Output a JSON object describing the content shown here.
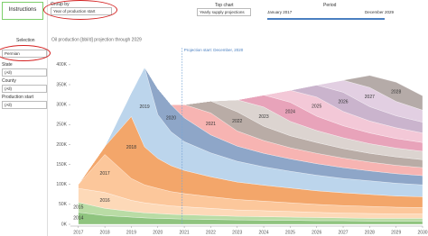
{
  "instructions": "Instructions",
  "group_by": {
    "label": "Group by",
    "value": "Year of production start"
  },
  "top_chart": {
    "label": "Top chart",
    "value": "Yearly supply projections"
  },
  "period": {
    "label": "Period",
    "start": "January 2017",
    "end": "December 2029"
  },
  "filters": [
    {
      "label": "Selection",
      "value": "Permian"
    },
    {
      "label": "State",
      "value": "(All)"
    },
    {
      "label": "County",
      "value": "(All)"
    },
    {
      "label": "Production start",
      "value": "(All)"
    }
  ],
  "chart_data": {
    "type": "stacked-area",
    "title": "Oil production [bbl/d] projection through 2029",
    "annotation": {
      "text": "Projection start: December, 2020",
      "x": 2020.92
    },
    "x": [
      2017,
      2018,
      2019,
      2019.5,
      2020,
      2020.5,
      2021,
      2022,
      2023,
      2024,
      2025,
      2026,
      2027,
      2028,
      2029,
      2030
    ],
    "xlim": [
      2016.7,
      2030
    ],
    "xticks": [
      2017,
      2018,
      2019,
      2020,
      2021,
      2022,
      2023,
      2024,
      2025,
      2026,
      2027,
      2028,
      2029,
      2030
    ],
    "ylim": [
      0,
      420000
    ],
    "yticks": [
      {
        "value": 0,
        "label": "0K"
      },
      {
        "value": 50000,
        "label": "50K"
      },
      {
        "value": 100000,
        "label": "100K"
      },
      {
        "value": 150000,
        "label": "150K"
      },
      {
        "value": 200000,
        "label": "200K"
      },
      {
        "value": 250000,
        "label": "250K"
      },
      {
        "value": 300000,
        "label": "300K"
      },
      {
        "value": 350000,
        "label": "350K"
      },
      {
        "value": 400000,
        "label": "400K"
      }
    ],
    "grid": false,
    "series": [
      {
        "name": "2014",
        "color": "#8fc47f",
        "values": [
          30000,
          22000,
          18000,
          16000,
          15000,
          14000,
          13000,
          12000,
          11000,
          10000,
          10000,
          9000,
          9000,
          8000,
          8000,
          8000
        ]
      },
      {
        "name": "2015",
        "color": "#b9dca5",
        "values": [
          25000,
          18000,
          14000,
          13000,
          12000,
          11000,
          11000,
          10000,
          9000,
          9000,
          8000,
          8000,
          7000,
          7000,
          7000,
          7000
        ]
      },
      {
        "name": "2016",
        "color": "#fdd9b8",
        "values": [
          35000,
          40000,
          28000,
          25000,
          23000,
          21000,
          20000,
          18000,
          16000,
          15000,
          14000,
          13000,
          12000,
          12000,
          11000,
          11000
        ]
      },
      {
        "name": "2017",
        "color": "#fcc79b",
        "values": [
          10000,
          95000,
          55000,
          45000,
          40000,
          36000,
          33000,
          29000,
          26000,
          24000,
          22000,
          20000,
          19000,
          18000,
          17000,
          16000
        ]
      },
      {
        "name": "2018",
        "color": "#f3a66a",
        "values": [
          0,
          20000,
          155000,
          95000,
          75000,
          65000,
          58000,
          50000,
          44000,
          40000,
          37000,
          34000,
          32000,
          30000,
          28000,
          27000
        ]
      },
      {
        "name": "2019",
        "color": "#bcd5ec",
        "values": [
          0,
          0,
          60000,
          200000,
          110000,
          85000,
          72000,
          60000,
          52000,
          46000,
          42000,
          39000,
          36000,
          34000,
          32000,
          30000
        ]
      },
      {
        "name": "2020",
        "color": "#8ea6c8",
        "values": [
          0,
          0,
          0,
          0,
          65000,
          68000,
          60000,
          45000,
          38000,
          34000,
          31000,
          29000,
          27000,
          25000,
          24000,
          23000
        ]
      },
      {
        "name": "2021",
        "color": "#f7b4b2",
        "values": [
          0,
          0,
          0,
          0,
          0,
          0,
          33000,
          55000,
          38000,
          32000,
          28000,
          26000,
          24000,
          22000,
          21000,
          20000
        ]
      },
      {
        "name": "2022",
        "color": "#b9aca6",
        "values": [
          0,
          0,
          0,
          0,
          0,
          0,
          0,
          30000,
          48000,
          36000,
          30000,
          27000,
          24000,
          22000,
          21000,
          20000
        ]
      },
      {
        "name": "2023",
        "color": "#dcd4d0",
        "values": [
          0,
          0,
          0,
          0,
          0,
          0,
          0,
          0,
          30000,
          48000,
          36000,
          30000,
          27000,
          24000,
          22000,
          21000
        ]
      },
      {
        "name": "2024",
        "color": "#e8a3ba",
        "values": [
          0,
          0,
          0,
          0,
          0,
          0,
          0,
          0,
          0,
          30000,
          48000,
          36000,
          30000,
          27000,
          24000,
          22000
        ]
      },
      {
        "name": "2025",
        "color": "#f3c8d7",
        "values": [
          0,
          0,
          0,
          0,
          0,
          0,
          0,
          0,
          0,
          0,
          30000,
          48000,
          36000,
          30000,
          27000,
          24000
        ]
      },
      {
        "name": "2026",
        "color": "#cab4cd",
        "values": [
          0,
          0,
          0,
          0,
          0,
          0,
          0,
          0,
          0,
          0,
          0,
          30000,
          48000,
          36000,
          30000,
          27000
        ]
      },
      {
        "name": "2027",
        "color": "#e2cfe2",
        "values": [
          0,
          0,
          0,
          0,
          0,
          0,
          0,
          0,
          0,
          0,
          0,
          0,
          30000,
          48000,
          36000,
          30000
        ]
      },
      {
        "name": "2028",
        "color": "#b5aba8",
        "values": [
          0,
          0,
          0,
          0,
          0,
          0,
          0,
          0,
          0,
          0,
          0,
          0,
          0,
          30000,
          48000,
          36000
        ]
      }
    ]
  }
}
